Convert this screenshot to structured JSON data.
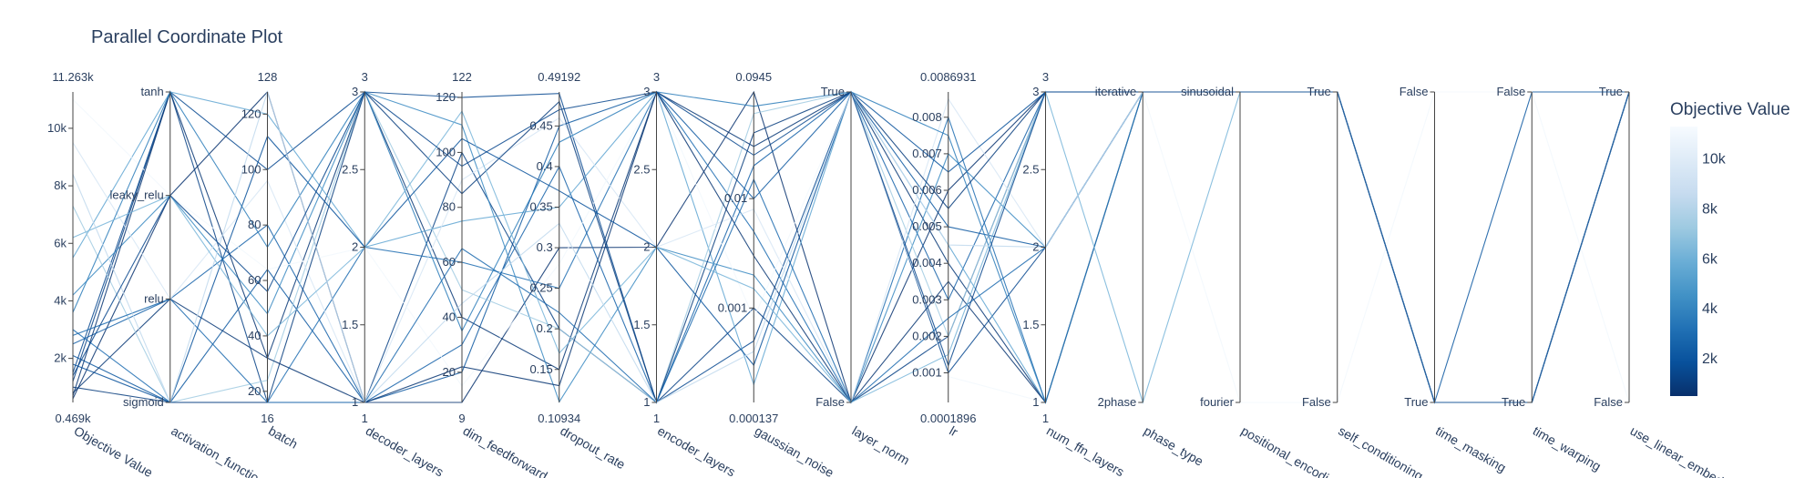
{
  "chart_data": {
    "type": "parallel_coordinates",
    "title": "Parallel Coordinate Plot",
    "colorbar": {
      "title": "Objective Value",
      "ticks": [
        "2k",
        "4k",
        "6k",
        "8k",
        "10k"
      ],
      "tick_values": [
        2000,
        4000,
        6000,
        8000,
        10000
      ],
      "range": [
        469,
        11263
      ],
      "colorscale": [
        "#08306b",
        "#08519c",
        "#2171b5",
        "#4292c6",
        "#6baed6",
        "#9ecae1",
        "#c6dbef",
        "#deebf7",
        "#f7fbff"
      ]
    },
    "dimensions": [
      {
        "label": "Objective Value",
        "range_min": "0.469k",
        "range_max": "11.263k",
        "min": 469,
        "max": 11263,
        "tick_vals": [
          2000,
          4000,
          6000,
          8000,
          10000
        ],
        "tick_text": [
          "2k",
          "4k",
          "6k",
          "8k",
          "10k"
        ]
      },
      {
        "label": "activation_functio",
        "categorical": true,
        "categories": [
          "sigmoid",
          "relu",
          "leaky_relu",
          "tanh"
        ],
        "tick_vals": [
          0,
          1,
          2,
          3
        ],
        "tick_text": [
          "sigmoid",
          "relu",
          "leaky_relu",
          "tanh"
        ],
        "min": 0,
        "max": 3
      },
      {
        "label": "batch",
        "range_min": "16",
        "range_max": "128",
        "min": 16,
        "max": 128,
        "tick_vals": [
          20,
          40,
          60,
          80,
          100,
          120
        ],
        "tick_text": [
          "20",
          "40",
          "60",
          "80",
          "100",
          "120"
        ]
      },
      {
        "label": "decoder_layers",
        "range_min": "1",
        "range_max": "3",
        "min": 1,
        "max": 3,
        "tick_vals": [
          1,
          1.5,
          2,
          2.5,
          3
        ],
        "tick_text": [
          "1",
          "1.5",
          "2",
          "2.5",
          "3"
        ]
      },
      {
        "label": "dim_feedforward",
        "range_min": "9",
        "range_max": "122",
        "min": 9,
        "max": 122,
        "tick_vals": [
          20,
          40,
          60,
          80,
          100,
          120
        ],
        "tick_text": [
          "20",
          "40",
          "60",
          "80",
          "100",
          "120"
        ]
      },
      {
        "label": "dropout_rate",
        "range_min": "0.10934",
        "range_max": "0.49192",
        "min": 0.10934,
        "max": 0.49192,
        "tick_vals": [
          0.15,
          0.2,
          0.25,
          0.3,
          0.35,
          0.4,
          0.45
        ],
        "tick_text": [
          "0.15",
          "0.2",
          "0.25",
          "0.3",
          "0.35",
          "0.4",
          "0.45"
        ]
      },
      {
        "label": "encoder_layers",
        "range_min": "1",
        "range_max": "3",
        "min": 1,
        "max": 3,
        "tick_vals": [
          1,
          1.5,
          2,
          2.5,
          3
        ],
        "tick_text": [
          "1",
          "1.5",
          "2",
          "2.5",
          "3"
        ]
      },
      {
        "label": "gaussian_noise",
        "range_min": "0.000137",
        "range_max": "0.0945",
        "min": 0.000137,
        "max": 0.0945,
        "log": true,
        "tick_vals": [
          0.001,
          0.01
        ],
        "tick_text": [
          "0.001",
          "0.01"
        ]
      },
      {
        "label": "layer_norm",
        "categorical": true,
        "categories": [
          "False",
          "True"
        ],
        "min": 0,
        "max": 1,
        "tick_vals": [
          0,
          1
        ],
        "tick_text": [
          "False",
          "True"
        ]
      },
      {
        "label": "lr",
        "range_min": "0.0001896",
        "range_max": "0.0086931",
        "min": 0.0001896,
        "max": 0.0086931,
        "tick_vals": [
          0.001,
          0.002,
          0.003,
          0.004,
          0.005,
          0.006,
          0.007,
          0.008
        ],
        "tick_text": [
          "0.001",
          "0.002",
          "0.003",
          "0.004",
          "0.005",
          "0.006",
          "0.007",
          "0.008"
        ]
      },
      {
        "label": "num_ffn_layers",
        "range_min": "1",
        "range_max": "3",
        "min": 1,
        "max": 3,
        "tick_vals": [
          1,
          1.5,
          2,
          2.5,
          3
        ],
        "tick_text": [
          "1",
          "1.5",
          "2",
          "2.5",
          "3"
        ]
      },
      {
        "label": "phase_type",
        "categorical": true,
        "categories": [
          "2phase",
          "iterative"
        ],
        "min": 0,
        "max": 1,
        "tick_vals": [
          0,
          1
        ],
        "tick_text": [
          "2phase",
          "iterative"
        ]
      },
      {
        "label": "positional_encodi",
        "categorical": true,
        "categories": [
          "fourier",
          "sinusoidal"
        ],
        "min": 0,
        "max": 1,
        "tick_vals": [
          0,
          1
        ],
        "tick_text": [
          "fourier",
          "sinusoidal"
        ]
      },
      {
        "label": "self_conditioning",
        "categorical": true,
        "categories": [
          "False",
          "True"
        ],
        "min": 0,
        "max": 1,
        "tick_vals": [
          0,
          1
        ],
        "tick_text": [
          "False",
          "True"
        ]
      },
      {
        "label": "time_masking",
        "categorical": true,
        "categories": [
          "True",
          "False"
        ],
        "min": 0,
        "max": 1,
        "tick_vals": [
          0,
          1
        ],
        "tick_text": [
          "True",
          "False"
        ]
      },
      {
        "label": "time_warping",
        "categorical": true,
        "categories": [
          "True",
          "False"
        ],
        "min": 0,
        "max": 1,
        "tick_vals": [
          0,
          1
        ],
        "tick_text": [
          "True",
          "False"
        ]
      },
      {
        "label": "use_linear_embed",
        "categorical": true,
        "categories": [
          "False",
          "True"
        ],
        "min": 0,
        "max": 1,
        "tick_vals": [
          0,
          1
        ],
        "tick_text": [
          "False",
          "True"
        ]
      }
    ],
    "trials": [
      [
        2100,
        0,
        64,
        1,
        20,
        0.45,
        3,
        0.01,
        1,
        0.005,
        2,
        1,
        1,
        1,
        0,
        1,
        1
      ],
      [
        1200,
        3,
        16,
        1,
        100,
        0.2,
        1,
        0.001,
        0,
        0.002,
        3,
        1,
        1,
        1,
        0,
        0,
        1
      ],
      [
        800,
        1,
        32,
        3,
        40,
        0.15,
        3,
        0.03,
        1,
        0.004,
        1,
        1,
        1,
        1,
        0,
        0,
        1
      ],
      [
        600,
        2,
        128,
        1,
        9,
        0.3,
        2,
        0.0945,
        0,
        0.006,
        3,
        1,
        1,
        1,
        0,
        0,
        1
      ],
      [
        1500,
        3,
        100,
        3,
        120,
        0.49,
        1,
        0.0005,
        1,
        0.001,
        2,
        1,
        1,
        1,
        0,
        0,
        1
      ],
      [
        3000,
        0,
        16,
        2,
        60,
        0.25,
        3,
        0.005,
        0,
        0.008,
        1,
        1,
        1,
        1,
        0,
        0,
        1
      ],
      [
        2500,
        1,
        80,
        1,
        30,
        0.4,
        1,
        0.02,
        1,
        0.003,
        3,
        1,
        1,
        1,
        0,
        0,
        1
      ],
      [
        4200,
        2,
        48,
        3,
        110,
        0.11,
        2,
        0.002,
        0,
        0.007,
        2,
        1,
        1,
        1,
        0,
        0,
        1
      ],
      [
        5500,
        3,
        120,
        2,
        75,
        0.35,
        3,
        0.0002,
        1,
        0.0045,
        1,
        1,
        1,
        1,
        0,
        0,
        1
      ],
      [
        7300,
        0,
        24,
        3,
        50,
        0.2,
        1,
        0.06,
        1,
        0.002,
        3,
        1,
        1,
        1,
        0,
        0,
        1
      ],
      [
        9500,
        1,
        96,
        1,
        90,
        0.46,
        2,
        0.008,
        0,
        0.0085,
        2,
        1,
        1,
        1,
        0,
        0,
        1
      ],
      [
        11000,
        2,
        64,
        2,
        15,
        0.28,
        3,
        0.0008,
        1,
        0.0009,
        1,
        1,
        0,
        0,
        1,
        1,
        0
      ],
      [
        1000,
        0,
        16,
        3,
        85,
        0.48,
        1,
        0.04,
        1,
        0.0055,
        3,
        1,
        1,
        1,
        0,
        0,
        1
      ],
      [
        700,
        3,
        32,
        1,
        22,
        0.13,
        3,
        0.003,
        0,
        0.0035,
        1,
        1,
        1,
        1,
        0,
        0,
        1
      ],
      [
        1800,
        0,
        112,
        2,
        105,
        0.37,
        2,
        0.0003,
        1,
        0.0065,
        3,
        1,
        1,
        1,
        0,
        0,
        1
      ],
      [
        2800,
        1,
        16,
        1,
        65,
        0.22,
        1,
        0.015,
        0,
        0.0025,
        2,
        1,
        1,
        1,
        0,
        0,
        1
      ],
      [
        3600,
        3,
        72,
        3,
        35,
        0.43,
        3,
        0.07,
        1,
        0.0075,
        1,
        1,
        1,
        1,
        0,
        0,
        1
      ],
      [
        6200,
        2,
        40,
        2,
        115,
        0.17,
        2,
        0.0015,
        0,
        0.0015,
        3,
        0,
        1,
        1,
        0,
        0,
        1
      ],
      [
        8400,
        0,
        128,
        1,
        45,
        0.33,
        1,
        0.0004,
        1,
        0.0045,
        2,
        1,
        1,
        1,
        0,
        0,
        1
      ],
      [
        1400,
        2,
        56,
        3,
        95,
        0.47,
        3,
        0.025,
        1,
        0.0012,
        3,
        1,
        1,
        1,
        0,
        0,
        1
      ]
    ]
  }
}
